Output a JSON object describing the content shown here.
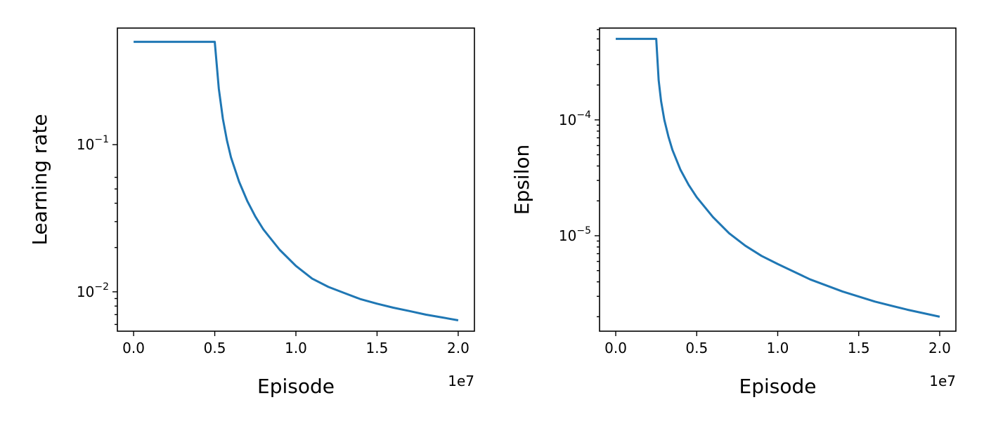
{
  "chart_data": [
    {
      "type": "line",
      "xlabel": "Episode",
      "ylabel": "Learning rate",
      "x_scale_label": "1e7",
      "y_scale": "log",
      "grid": false,
      "xlim": [
        -1000000,
        21000000
      ],
      "ylim": [
        0.0054,
        0.62
      ],
      "x_ticks": [
        {
          "value": 0,
          "label": "0.0"
        },
        {
          "value": 5000000,
          "label": "0.5"
        },
        {
          "value": 10000000,
          "label": "1.0"
        },
        {
          "value": 15000000,
          "label": "1.5"
        },
        {
          "value": 20000000,
          "label": "2.0"
        }
      ],
      "y_major_ticks": [
        {
          "value": 0.01,
          "base": "10",
          "exp": "−2"
        },
        {
          "value": 0.1,
          "base": "10",
          "exp": "−1"
        }
      ],
      "y_minor_ticks": [
        0.006,
        0.007,
        0.008,
        0.009,
        0.02,
        0.03,
        0.04,
        0.05,
        0.06
      ],
      "series": [
        {
          "color": "#1f77b4",
          "x": [
            0,
            5000000,
            5250000,
            5500000,
            5750000,
            6000000,
            6500000,
            7000000,
            7500000,
            8000000,
            9000000,
            10000000,
            11000000,
            12000000,
            13000000,
            14000000,
            15000000,
            16000000,
            17000000,
            18000000,
            19000000,
            20000000
          ],
          "y": [
            0.5,
            0.5,
            0.24,
            0.15,
            0.107,
            0.082,
            0.056,
            0.0415,
            0.0325,
            0.0265,
            0.0193,
            0.015,
            0.0123,
            0.0108,
            0.0098,
            0.0089,
            0.0083,
            0.0078,
            0.0074,
            0.007,
            0.0067,
            0.0064
          ]
        }
      ]
    },
    {
      "type": "line",
      "xlabel": "Episode",
      "ylabel": "Epsilon",
      "x_scale_label": "1e7",
      "y_scale": "log",
      "grid": false,
      "xlim": [
        -1000000,
        21000000
      ],
      "ylim": [
        1.5e-06,
        0.00062
      ],
      "x_ticks": [
        {
          "value": 0,
          "label": "0.0"
        },
        {
          "value": 5000000,
          "label": "0.5"
        },
        {
          "value": 10000000,
          "label": "1.0"
        },
        {
          "value": 15000000,
          "label": "1.5"
        },
        {
          "value": 20000000,
          "label": "2.0"
        }
      ],
      "y_major_ticks": [
        {
          "value": 1e-05,
          "base": "10",
          "exp": "−5"
        },
        {
          "value": 0.0001,
          "base": "10",
          "exp": "−4"
        }
      ],
      "y_minor_ticks": [
        2e-06,
        3e-06,
        4e-06,
        5e-06,
        6e-06,
        7e-06,
        8e-06,
        9e-06,
        2e-05,
        3e-05,
        4e-05,
        5e-05,
        6e-05,
        7e-05,
        8e-05,
        9e-05,
        0.0002,
        0.0003,
        0.0004,
        0.0005,
        0.0006
      ],
      "series": [
        {
          "color": "#1f77b4",
          "x": [
            0,
            2500000,
            2650000,
            2800000,
            3000000,
            3250000,
            3500000,
            4000000,
            4500000,
            5000000,
            6000000,
            7000000,
            8000000,
            9000000,
            10000000,
            12000000,
            14000000,
            16000000,
            18000000,
            20000000
          ],
          "y": [
            0.0005,
            0.0005,
            0.00022,
            0.000145,
            0.0001,
            7.2e-05,
            5.5e-05,
            3.7e-05,
            2.75e-05,
            2.15e-05,
            1.45e-05,
            1.05e-05,
            8.2e-06,
            6.7e-06,
            5.7e-06,
            4.2e-06,
            3.3e-06,
            2.7e-06,
            2.3e-06,
            2e-06
          ]
        }
      ]
    }
  ]
}
